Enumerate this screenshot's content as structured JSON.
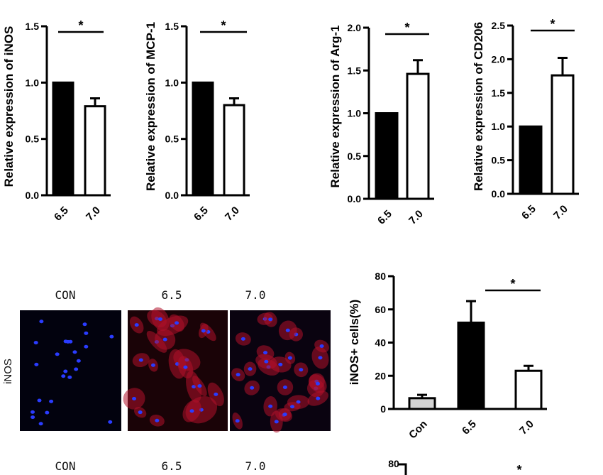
{
  "chart_data": [
    {
      "type": "bar",
      "ylabel": "Relative expression of iNOS",
      "categories": [
        "6.5",
        "7.0"
      ],
      "values": [
        1.0,
        0.79
      ],
      "errors": [
        0,
        0.07
      ],
      "ylim": [
        0,
        1.5
      ],
      "yticks": [
        "0.0",
        "0.5",
        "1.0",
        "1.5"
      ],
      "fills": [
        "#000000",
        "#ffffff"
      ],
      "significance": "*"
    },
    {
      "type": "bar",
      "ylabel": "Relative expression of MCP-1",
      "categories": [
        "6.5",
        "7.0"
      ],
      "values": [
        1.0,
        0.8
      ],
      "errors": [
        0,
        0.06
      ],
      "ylim": [
        0,
        1.5
      ],
      "yticks": [
        "0.0",
        "0.5",
        "1.0",
        "1.5"
      ],
      "fills": [
        "#000000",
        "#ffffff"
      ],
      "significance": "*"
    },
    {
      "type": "bar",
      "ylabel": "Relative expression of Arg-1",
      "categories": [
        "6.5",
        "7.0"
      ],
      "values": [
        1.0,
        1.46
      ],
      "errors": [
        0,
        0.16
      ],
      "ylim": [
        0,
        2.0
      ],
      "yticks": [
        "0.0",
        "0.5",
        "1.0",
        "1.5",
        "2.0"
      ],
      "fills": [
        "#000000",
        "#ffffff"
      ],
      "significance": "*"
    },
    {
      "type": "bar",
      "ylabel": "Relative expression of CD206",
      "categories": [
        "6.5",
        "7.0"
      ],
      "values": [
        1.0,
        1.76
      ],
      "errors": [
        0,
        0.26
      ],
      "ylim": [
        0,
        2.5
      ],
      "yticks": [
        "0.0",
        "0.5",
        "1.0",
        "1.5",
        "2.0",
        "2.5"
      ],
      "fills": [
        "#000000",
        "#ffffff"
      ],
      "significance": "*"
    },
    {
      "type": "bar",
      "ylabel": "iNOS+ cells(%)",
      "categories": [
        "Con",
        "6.5",
        "7.0"
      ],
      "values": [
        6.5,
        52,
        23
      ],
      "errors": [
        2,
        13,
        3
      ],
      "ylim": [
        0,
        80
      ],
      "yticks": [
        "0",
        "20",
        "40",
        "60",
        "80"
      ],
      "fills": [
        "#d3d3d3",
        "#000000",
        "#ffffff"
      ],
      "significance": "*"
    }
  ],
  "micrographs": {
    "row_label": "iNOS",
    "columns": [
      "CON",
      "6.5",
      "7.0"
    ]
  },
  "bottom_row": {
    "columns": [
      "CON",
      "6.5",
      "7.0"
    ],
    "ytick_top": "80",
    "star": "*"
  }
}
